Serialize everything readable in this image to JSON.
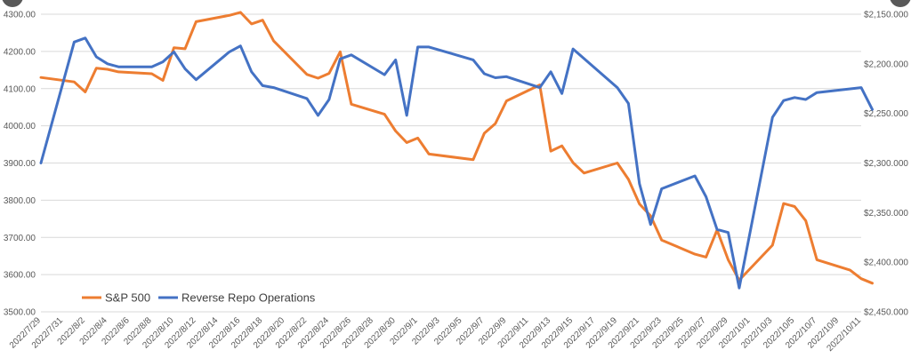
{
  "chart_data": {
    "type": "line",
    "title": "",
    "xlabel": "",
    "ylabel_left": "",
    "ylabel_right": "",
    "grid": true,
    "legend_position": "bottom-left",
    "x_tick_labels": [
      "2022/7/29",
      "2022/7/31",
      "2022/8/2",
      "2022/8/4",
      "2022/8/6",
      "2022/8/8",
      "2022/8/10",
      "2022/8/12",
      "2022/8/14",
      "2022/8/16",
      "2022/8/18",
      "2022/8/20",
      "2022/8/22",
      "2022/8/24",
      "2022/8/26",
      "2022/8/28",
      "2022/8/30",
      "2022/9/1",
      "2022/9/3",
      "2022/9/5",
      "2022/9/7",
      "2022/9/9",
      "2022/9/11",
      "2022/9/13",
      "2022/9/15",
      "2022/9/17",
      "2022/9/19",
      "2022/9/21",
      "2022/9/23",
      "2022/9/25",
      "2022/9/27",
      "2022/9/29",
      "2022/10/1",
      "2022/10/3",
      "2022/10/5",
      "2022/10/7",
      "2022/10/9",
      "2022/10/11"
    ],
    "y_left": {
      "range": [
        3500,
        4300
      ],
      "ticks": [
        3500,
        3600,
        3700,
        3800,
        3900,
        4000,
        4100,
        4200,
        4300
      ],
      "tick_labels": [
        "3500.00",
        "3600.00",
        "3700.00",
        "3800.00",
        "3900.00",
        "4000.00",
        "4100.00",
        "4200.00",
        "4300.00"
      ]
    },
    "y_right": {
      "range": [
        2450,
        2150
      ],
      "reversed": true,
      "ticks": [
        2150,
        2200,
        2250,
        2300,
        2350,
        2400,
        2450
      ],
      "tick_labels": [
        "$2,150.000",
        "$2,200.000",
        "$2,250.000",
        "$2,300.000",
        "$2,350.000",
        "$2,400.000",
        "$2,450.000"
      ]
    },
    "series": [
      {
        "name": "S&P 500",
        "axis": "left",
        "color": "#ED7D31",
        "points": [
          [
            "2022/7/29",
            4130
          ],
          [
            "2022/8/1",
            4118
          ],
          [
            "2022/8/2",
            4091
          ],
          [
            "2022/8/3",
            4155
          ],
          [
            "2022/8/4",
            4152
          ],
          [
            "2022/8/5",
            4145
          ],
          [
            "2022/8/8",
            4140
          ],
          [
            "2022/8/9",
            4122
          ],
          [
            "2022/8/10",
            4210
          ],
          [
            "2022/8/11",
            4207
          ],
          [
            "2022/8/12",
            4280
          ],
          [
            "2022/8/15",
            4297
          ],
          [
            "2022/8/16",
            4305
          ],
          [
            "2022/8/17",
            4274
          ],
          [
            "2022/8/18",
            4284
          ],
          [
            "2022/8/19",
            4228
          ],
          [
            "2022/8/22",
            4138
          ],
          [
            "2022/8/23",
            4128
          ],
          [
            "2022/8/24",
            4141
          ],
          [
            "2022/8/25",
            4199
          ],
          [
            "2022/8/26",
            4058
          ],
          [
            "2022/8/29",
            4031
          ],
          [
            "2022/8/30",
            3986
          ],
          [
            "2022/8/31",
            3955
          ],
          [
            "2022/9/1",
            3967
          ],
          [
            "2022/9/2",
            3924
          ],
          [
            "2022/9/6",
            3909
          ],
          [
            "2022/9/7",
            3980
          ],
          [
            "2022/9/8",
            4006
          ],
          [
            "2022/9/9",
            4067
          ],
          [
            "2022/9/12",
            4110
          ],
          [
            "2022/9/13",
            3932
          ],
          [
            "2022/9/14",
            3946
          ],
          [
            "2022/9/15",
            3901
          ],
          [
            "2022/9/16",
            3873
          ],
          [
            "2022/9/19",
            3900
          ],
          [
            "2022/9/20",
            3856
          ],
          [
            "2022/9/21",
            3790
          ],
          [
            "2022/9/22",
            3758
          ],
          [
            "2022/9/23",
            3693
          ],
          [
            "2022/9/26",
            3655
          ],
          [
            "2022/9/27",
            3647
          ],
          [
            "2022/9/28",
            3720
          ],
          [
            "2022/9/29",
            3640
          ],
          [
            "2022/9/30",
            3585
          ],
          [
            "2022/10/3",
            3679
          ],
          [
            "2022/10/4",
            3791
          ],
          [
            "2022/10/5",
            3783
          ],
          [
            "2022/10/6",
            3745
          ],
          [
            "2022/10/7",
            3640
          ],
          [
            "2022/10/10",
            3612
          ],
          [
            "2022/10/11",
            3589
          ],
          [
            "2022/10/12",
            3577
          ]
        ]
      },
      {
        "name": "Reverse Repo Operations",
        "axis": "right",
        "color": "#4472C4",
        "points": [
          [
            "2022/7/29",
            2300
          ],
          [
            "2022/8/1",
            2178
          ],
          [
            "2022/8/2",
            2174
          ],
          [
            "2022/8/3",
            2193
          ],
          [
            "2022/8/4",
            2200
          ],
          [
            "2022/8/5",
            2203
          ],
          [
            "2022/8/8",
            2203
          ],
          [
            "2022/8/9",
            2198
          ],
          [
            "2022/8/10",
            2188
          ],
          [
            "2022/8/11",
            2205
          ],
          [
            "2022/8/12",
            2216
          ],
          [
            "2022/8/15",
            2188
          ],
          [
            "2022/8/16",
            2182
          ],
          [
            "2022/8/17",
            2208
          ],
          [
            "2022/8/18",
            2222
          ],
          [
            "2022/8/19",
            2224
          ],
          [
            "2022/8/22",
            2235
          ],
          [
            "2022/8/23",
            2252
          ],
          [
            "2022/8/24",
            2236
          ],
          [
            "2022/8/25",
            2195
          ],
          [
            "2022/8/26",
            2191
          ],
          [
            "2022/8/29",
            2211
          ],
          [
            "2022/8/30",
            2196
          ],
          [
            "2022/8/31",
            2252
          ],
          [
            "2022/9/1",
            2183
          ],
          [
            "2022/9/2",
            2183
          ],
          [
            "2022/9/6",
            2196
          ],
          [
            "2022/9/7",
            2210
          ],
          [
            "2022/9/8",
            2214
          ],
          [
            "2022/9/9",
            2213
          ],
          [
            "2022/9/12",
            2224
          ],
          [
            "2022/9/13",
            2208
          ],
          [
            "2022/9/14",
            2230
          ],
          [
            "2022/9/15",
            2185
          ],
          [
            "2022/9/19",
            2224
          ],
          [
            "2022/9/20",
            2240
          ],
          [
            "2022/9/21",
            2321
          ],
          [
            "2022/9/22",
            2362
          ],
          [
            "2022/9/23",
            2326
          ],
          [
            "2022/9/26",
            2313
          ],
          [
            "2022/9/27",
            2334
          ],
          [
            "2022/9/28",
            2367
          ],
          [
            "2022/9/29",
            2370
          ],
          [
            "2022/9/30",
            2426
          ],
          [
            "2022/10/3",
            2254
          ],
          [
            "2022/10/4",
            2237
          ],
          [
            "2022/10/5",
            2234
          ],
          [
            "2022/10/6",
            2236
          ],
          [
            "2022/10/7",
            2229
          ],
          [
            "2022/10/11",
            2224
          ],
          [
            "2022/10/12",
            2246
          ]
        ]
      }
    ]
  }
}
